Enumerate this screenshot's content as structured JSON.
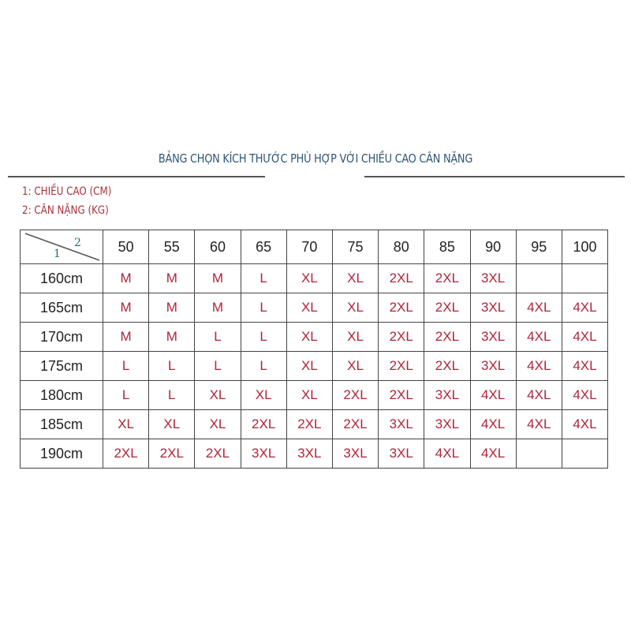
{
  "title": "BẢNG CHỌN KÍCH THƯỚC PHÙ HỢP VỚI CHIỀU CAO CÂN NẶNG",
  "legend": [
    "1: CHIỀU CAO (CM)",
    "2: CÂN NẶNG (KG)"
  ],
  "corner": {
    "row_key": "1",
    "col_key": "2"
  },
  "colors": {
    "title": "#2f5675",
    "legend": "#a8323f",
    "size_text": "#b0243a"
  },
  "chart_data": {
    "type": "table",
    "columns": [
      "50",
      "55",
      "60",
      "65",
      "70",
      "75",
      "80",
      "85",
      "90",
      "95",
      "100"
    ],
    "rows": [
      {
        "height": "160cm",
        "sizes": [
          "M",
          "M",
          "M",
          "L",
          "XL",
          "XL",
          "2XL",
          "2XL",
          "3XL",
          "",
          ""
        ]
      },
      {
        "height": "165cm",
        "sizes": [
          "M",
          "M",
          "M",
          "L",
          "XL",
          "XL",
          "2XL",
          "2XL",
          "3XL",
          "4XL",
          "4XL"
        ]
      },
      {
        "height": "170cm",
        "sizes": [
          "M",
          "M",
          "L",
          "L",
          "XL",
          "XL",
          "2XL",
          "2XL",
          "3XL",
          "4XL",
          "4XL"
        ]
      },
      {
        "height": "175cm",
        "sizes": [
          "L",
          "L",
          "L",
          "L",
          "XL",
          "XL",
          "2XL",
          "2XL",
          "3XL",
          "4XL",
          "4XL"
        ]
      },
      {
        "height": "180cm",
        "sizes": [
          "L",
          "L",
          "XL",
          "XL",
          "XL",
          "2XL",
          "2XL",
          "3XL",
          "4XL",
          "4XL",
          "4XL"
        ]
      },
      {
        "height": "185cm",
        "sizes": [
          "XL",
          "XL",
          "XL",
          "2XL",
          "2XL",
          "2XL",
          "3XL",
          "3XL",
          "4XL",
          "4XL",
          "4XL"
        ]
      },
      {
        "height": "190cm",
        "sizes": [
          "2XL",
          "2XL",
          "2XL",
          "3XL",
          "3XL",
          "3XL",
          "3XL",
          "4XL",
          "4XL",
          "",
          ""
        ]
      }
    ]
  }
}
